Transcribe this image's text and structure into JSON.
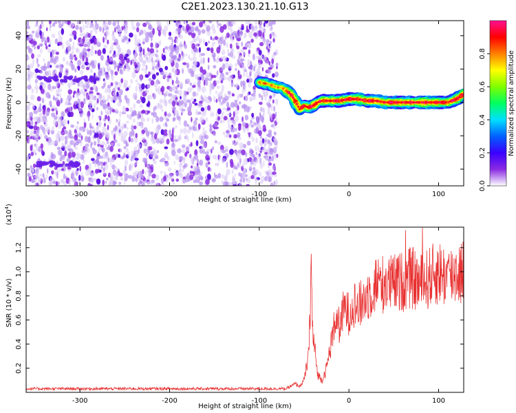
{
  "title": "C2E1.2023.130.21.10.G13",
  "chart_data": [
    {
      "type": "heatmap",
      "xlabel": "Height of straight line (km)",
      "ylabel": "Frequency (Hz)",
      "xlim": [
        -360,
        128
      ],
      "ylim": [
        -50,
        49
      ],
      "xticks": [
        -300,
        -200,
        -100,
        0,
        100
      ],
      "yticks": [
        -40,
        -20,
        0,
        20,
        40
      ],
      "noise_region_x": [
        -360,
        -80
      ],
      "ridge": {
        "x": [
          -100,
          -90,
          -80,
          -75,
          -70,
          -65,
          -60,
          -55,
          -50,
          -45,
          -40,
          -35,
          -30,
          -20,
          -10,
          0,
          10,
          20,
          30,
          40,
          50,
          60,
          70,
          80,
          90,
          100,
          110,
          120,
          128
        ],
        "y": [
          12,
          11,
          9,
          9,
          7,
          5,
          1,
          -4,
          -2,
          -3,
          -2,
          0,
          1,
          1,
          1,
          2,
          2,
          1,
          1,
          0,
          0,
          0,
          0,
          0,
          0,
          0,
          0,
          2,
          5
        ]
      },
      "colorbar": {
        "label": "Normalized spectral amplitude",
        "range": [
          0,
          1
        ],
        "ticks": [
          "0.0",
          "0.2",
          "0.4",
          "0.6",
          "0.8"
        ],
        "tick_values": [
          0,
          0.2,
          0.4,
          0.6,
          0.8
        ],
        "colors": [
          "#ffffff",
          "#8a2be2",
          "#3a00ff",
          "#0060ff",
          "#00e0ff",
          "#00ff60",
          "#80ff00",
          "#ffff00",
          "#ff8000",
          "#ff0000",
          "#ff1090"
        ]
      }
    },
    {
      "type": "line",
      "xlabel": "Height of straight line (km)",
      "ylabel": "SNR (10 * v/v)",
      "y_multiplier": "(x10",
      "y_multiplier_exp": "4",
      "y_multiplier_close": ")",
      "xlim": [
        -360,
        128
      ],
      "ylim": [
        0,
        1.37
      ],
      "xticks": [
        -300,
        -200,
        -100,
        0,
        100
      ],
      "yticks": [
        "0.2",
        "0.4",
        "0.6",
        "0.8",
        "1.0",
        "1.2"
      ],
      "ytick_values": [
        0.2,
        0.4,
        0.6,
        0.8,
        1.0,
        1.2
      ],
      "color": "#e83030",
      "series": [
        {
          "x": [
            -360,
            -300,
            -200,
            -100,
            -70,
            -60,
            -55,
            -50,
            -45,
            -42,
            -40,
            -38,
            -35,
            -30,
            -25,
            -20,
            -15,
            -10,
            -5,
            0,
            5,
            10,
            20,
            30,
            40,
            50,
            60,
            70,
            80,
            90,
            100,
            110,
            120,
            128
          ],
          "y": [
            0.03,
            0.03,
            0.03,
            0.03,
            0.03,
            0.07,
            0.05,
            0.1,
            0.3,
            1.0,
            0.45,
            0.35,
            0.15,
            0.1,
            0.2,
            0.4,
            0.6,
            0.55,
            0.7,
            0.65,
            0.75,
            0.7,
            0.8,
            0.9,
            0.9,
            0.9,
            0.92,
            0.95,
            0.9,
            0.95,
            1.0,
            0.95,
            1.0,
            1.0
          ]
        }
      ]
    }
  ]
}
